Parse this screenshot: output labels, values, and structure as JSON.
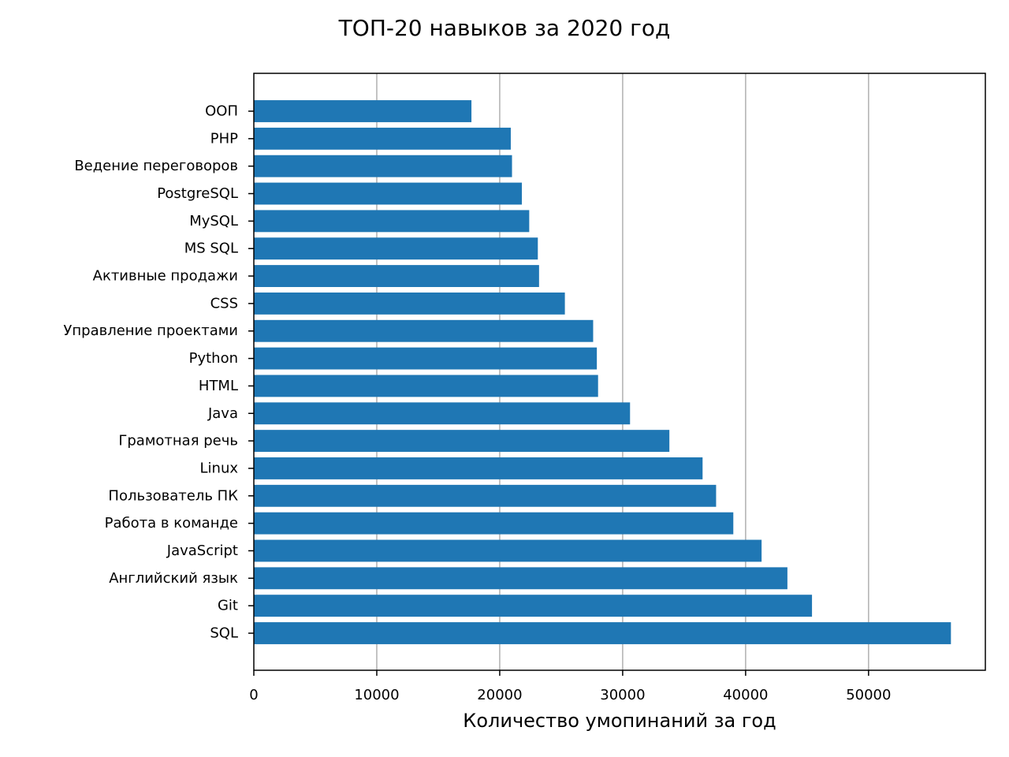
{
  "chart_data": {
    "type": "bar",
    "orientation": "horizontal",
    "title": "ТОП-20 навыков за 2020 год",
    "xlabel": "Количество умопинаний за год",
    "ylabel": "",
    "xlim": [
      0,
      59500
    ],
    "xticks": [
      0,
      10000,
      20000,
      30000,
      40000,
      50000
    ],
    "xtick_labels": [
      "0",
      "10000",
      "20000",
      "30000",
      "40000",
      "50000"
    ],
    "grid": "vertical",
    "legend": "none",
    "bar_color": "#1f77b4",
    "gridline_color": "#b0b0b0",
    "categories": [
      "SQL",
      "Git",
      "Английский язык",
      "JavaScript",
      "Работа в команде",
      "Пользователь ПК",
      "Linux",
      "Грамотная речь",
      "Java",
      "HTML",
      "Python",
      "Управление проектами",
      "CSS",
      "Активные продажи",
      "MS SQL",
      "MySQL",
      "PostgreSQL",
      "Ведение переговоров",
      "PHP",
      "ООП"
    ],
    "values": [
      56700,
      45400,
      43400,
      41300,
      39000,
      37600,
      36500,
      33800,
      30600,
      28000,
      27900,
      27600,
      25300,
      23200,
      23100,
      22400,
      21800,
      21000,
      20900,
      17700
    ]
  }
}
